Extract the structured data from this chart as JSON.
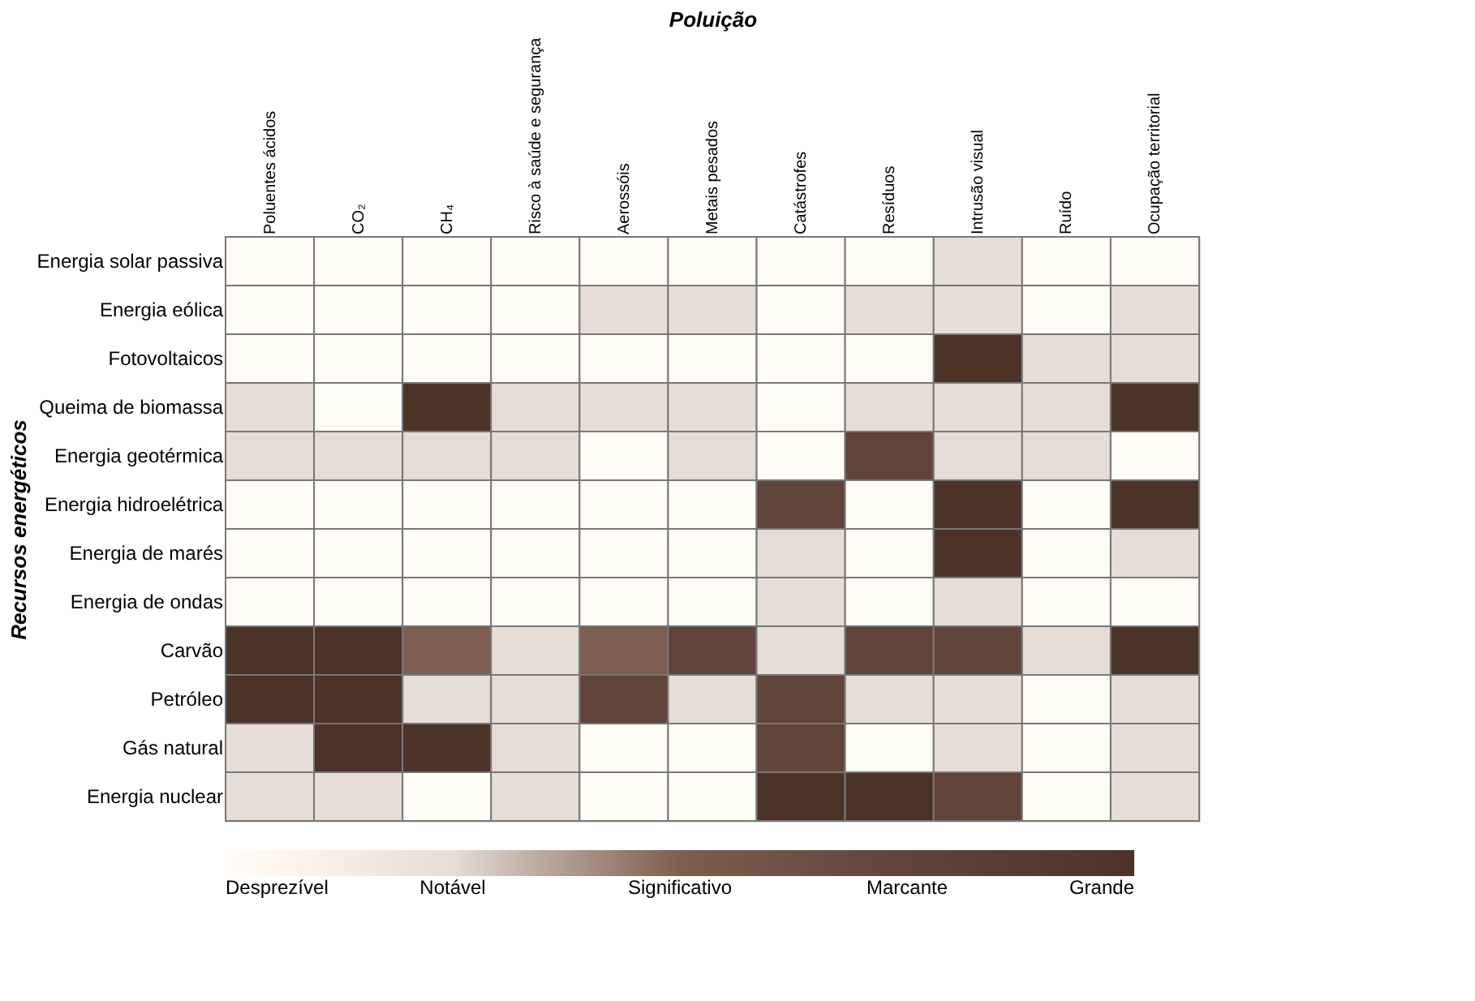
{
  "chart_data": {
    "type": "heatmap",
    "xlabel": "Poluição",
    "ylabel": "Recursos energéticos",
    "categories": [
      "Poluentes ácidos",
      "CO₂",
      "CH₄",
      "Risco à saúde e segurança",
      "Aerossóis",
      "Metais pesados",
      "Catástrofes",
      "Resíduos",
      "Intrusão visual",
      "Ruído",
      "Ocupação territorial"
    ],
    "y_categories": [
      "Energia solar passiva",
      "Energia eólica",
      "Fotovoltaicos",
      "Queima de biomassa",
      "Energia geotérmica",
      "Energia hidroelétrica",
      "Energia de marés",
      "Energia de ondas",
      "Carvão",
      "Petróleo",
      "Gás natural",
      "Energia nuclear"
    ],
    "cells": [
      [
        0,
        0,
        0,
        0,
        0,
        0,
        0,
        0,
        1,
        0,
        0
      ],
      [
        0,
        0,
        0,
        0,
        1,
        1,
        0,
        1,
        1,
        0,
        1
      ],
      [
        0,
        0,
        0,
        0,
        0,
        0,
        0,
        0,
        4,
        1,
        1
      ],
      [
        1,
        0,
        4,
        1,
        1,
        1,
        0,
        1,
        1,
        1,
        4
      ],
      [
        1,
        1,
        1,
        1,
        0,
        1,
        0,
        3,
        1,
        1,
        0
      ],
      [
        0,
        0,
        0,
        0,
        0,
        0,
        3,
        0,
        4,
        0,
        4
      ],
      [
        0,
        0,
        0,
        0,
        0,
        0,
        1,
        0,
        4,
        0,
        1
      ],
      [
        0,
        0,
        0,
        0,
        0,
        0,
        1,
        0,
        1,
        0,
        0
      ],
      [
        4,
        4,
        2,
        1,
        2,
        3,
        1,
        3,
        3,
        1,
        4
      ],
      [
        4,
        4,
        1,
        1,
        3,
        1,
        3,
        1,
        1,
        0,
        1
      ],
      [
        1,
        4,
        4,
        1,
        0,
        0,
        3,
        0,
        1,
        0,
        1
      ],
      [
        1,
        1,
        0,
        1,
        0,
        0,
        4,
        4,
        3,
        0,
        1
      ]
    ],
    "clim": [
      0,
      4
    ],
    "cticks": [
      {
        "value": 0,
        "label": "Desprezível"
      },
      {
        "value": 1,
        "label": "Notável"
      },
      {
        "value": 2,
        "label": "Significativo"
      },
      {
        "value": 3,
        "label": "Marcante"
      },
      {
        "value": 4,
        "label": "Grande"
      }
    ],
    "colors": [
      "#ffffff",
      "#e6ddd6",
      "#7d5e50",
      "#60443a",
      "#4c3328"
    ]
  }
}
